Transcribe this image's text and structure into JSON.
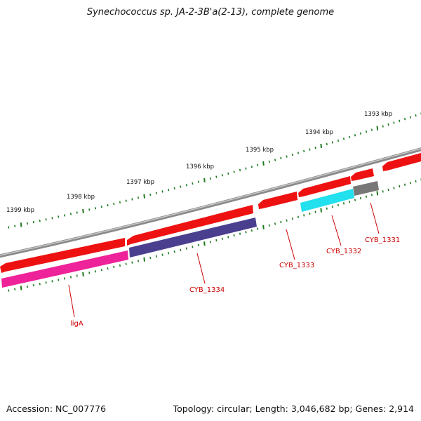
{
  "title": "Synechococcus sp. JA-2-3B'a(2-13), complete genome",
  "footer": {
    "accession": "Accession: NC_007776",
    "summary": "Topology: circular; Length: 3,046,682 bp; Genes: 2,914"
  },
  "colors": {
    "backbone": "#7a7a7a",
    "ticks": "#1f7a1f",
    "gene_label": "#cc0000",
    "red_gene": "#ee1111",
    "ligA": "#ee2299",
    "CYB_1334": "#4a3f8f",
    "CYB_1332": "#22e0ee",
    "CYB_1331": "#777777"
  },
  "kbp_labels": [
    "1399 kbp",
    "1398 kbp",
    "1397 kbp",
    "1396 kbp",
    "1395 kbp",
    "1394 kbp",
    "1393 kbp"
  ],
  "gene_labels": [
    "ligA",
    "CYB_1334",
    "CYB_1333",
    "CYB_1332",
    "CYB_1331"
  ]
}
